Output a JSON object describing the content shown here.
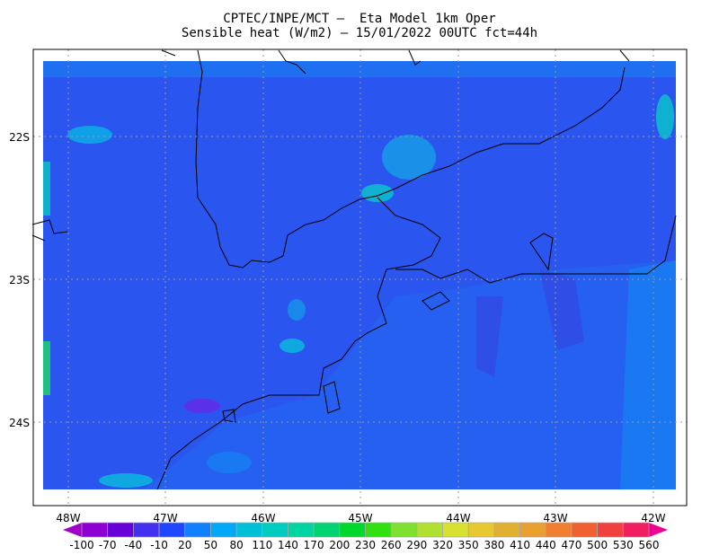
{
  "header": {
    "line1": "CPTEC/INPE/MCT –  Eta Model 1km Oper",
    "line2": "Sensible heat (W/m2) – 15/01/2022 00UTC fct=44h"
  },
  "map": {
    "variable": "Sensible heat (W/m2)",
    "lat_labels": [
      "22S",
      "23S",
      "24S"
    ],
    "lon_labels": [
      "48W",
      "47W",
      "46W",
      "45W",
      "44W",
      "43W",
      "42W"
    ],
    "gridlines": "dotted",
    "dominant_color": "#2a55ee",
    "ocean_color": "#1f74f4"
  },
  "colorbar": {
    "labels": [
      "-100",
      "-70",
      "-40",
      "-10",
      "20",
      "50",
      "80",
      "110",
      "140",
      "170",
      "200",
      "230",
      "260",
      "290",
      "320",
      "350",
      "380",
      "410",
      "440",
      "470",
      "500",
      "530",
      "560"
    ],
    "colors": [
      "#8c00d4",
      "#6a00d8",
      "#4630f0",
      "#2046ff",
      "#1080ff",
      "#00a8f8",
      "#00c0d8",
      "#00ccc0",
      "#00d4a0",
      "#00d470",
      "#00d830",
      "#30e010",
      "#80e030",
      "#b0e030",
      "#d8e030",
      "#e8c830",
      "#e0b030",
      "#e8a030",
      "#f08030",
      "#f06030",
      "#f04040",
      "#f02060"
    ],
    "under_color": "#a000c8",
    "over_color": "#f00090"
  }
}
